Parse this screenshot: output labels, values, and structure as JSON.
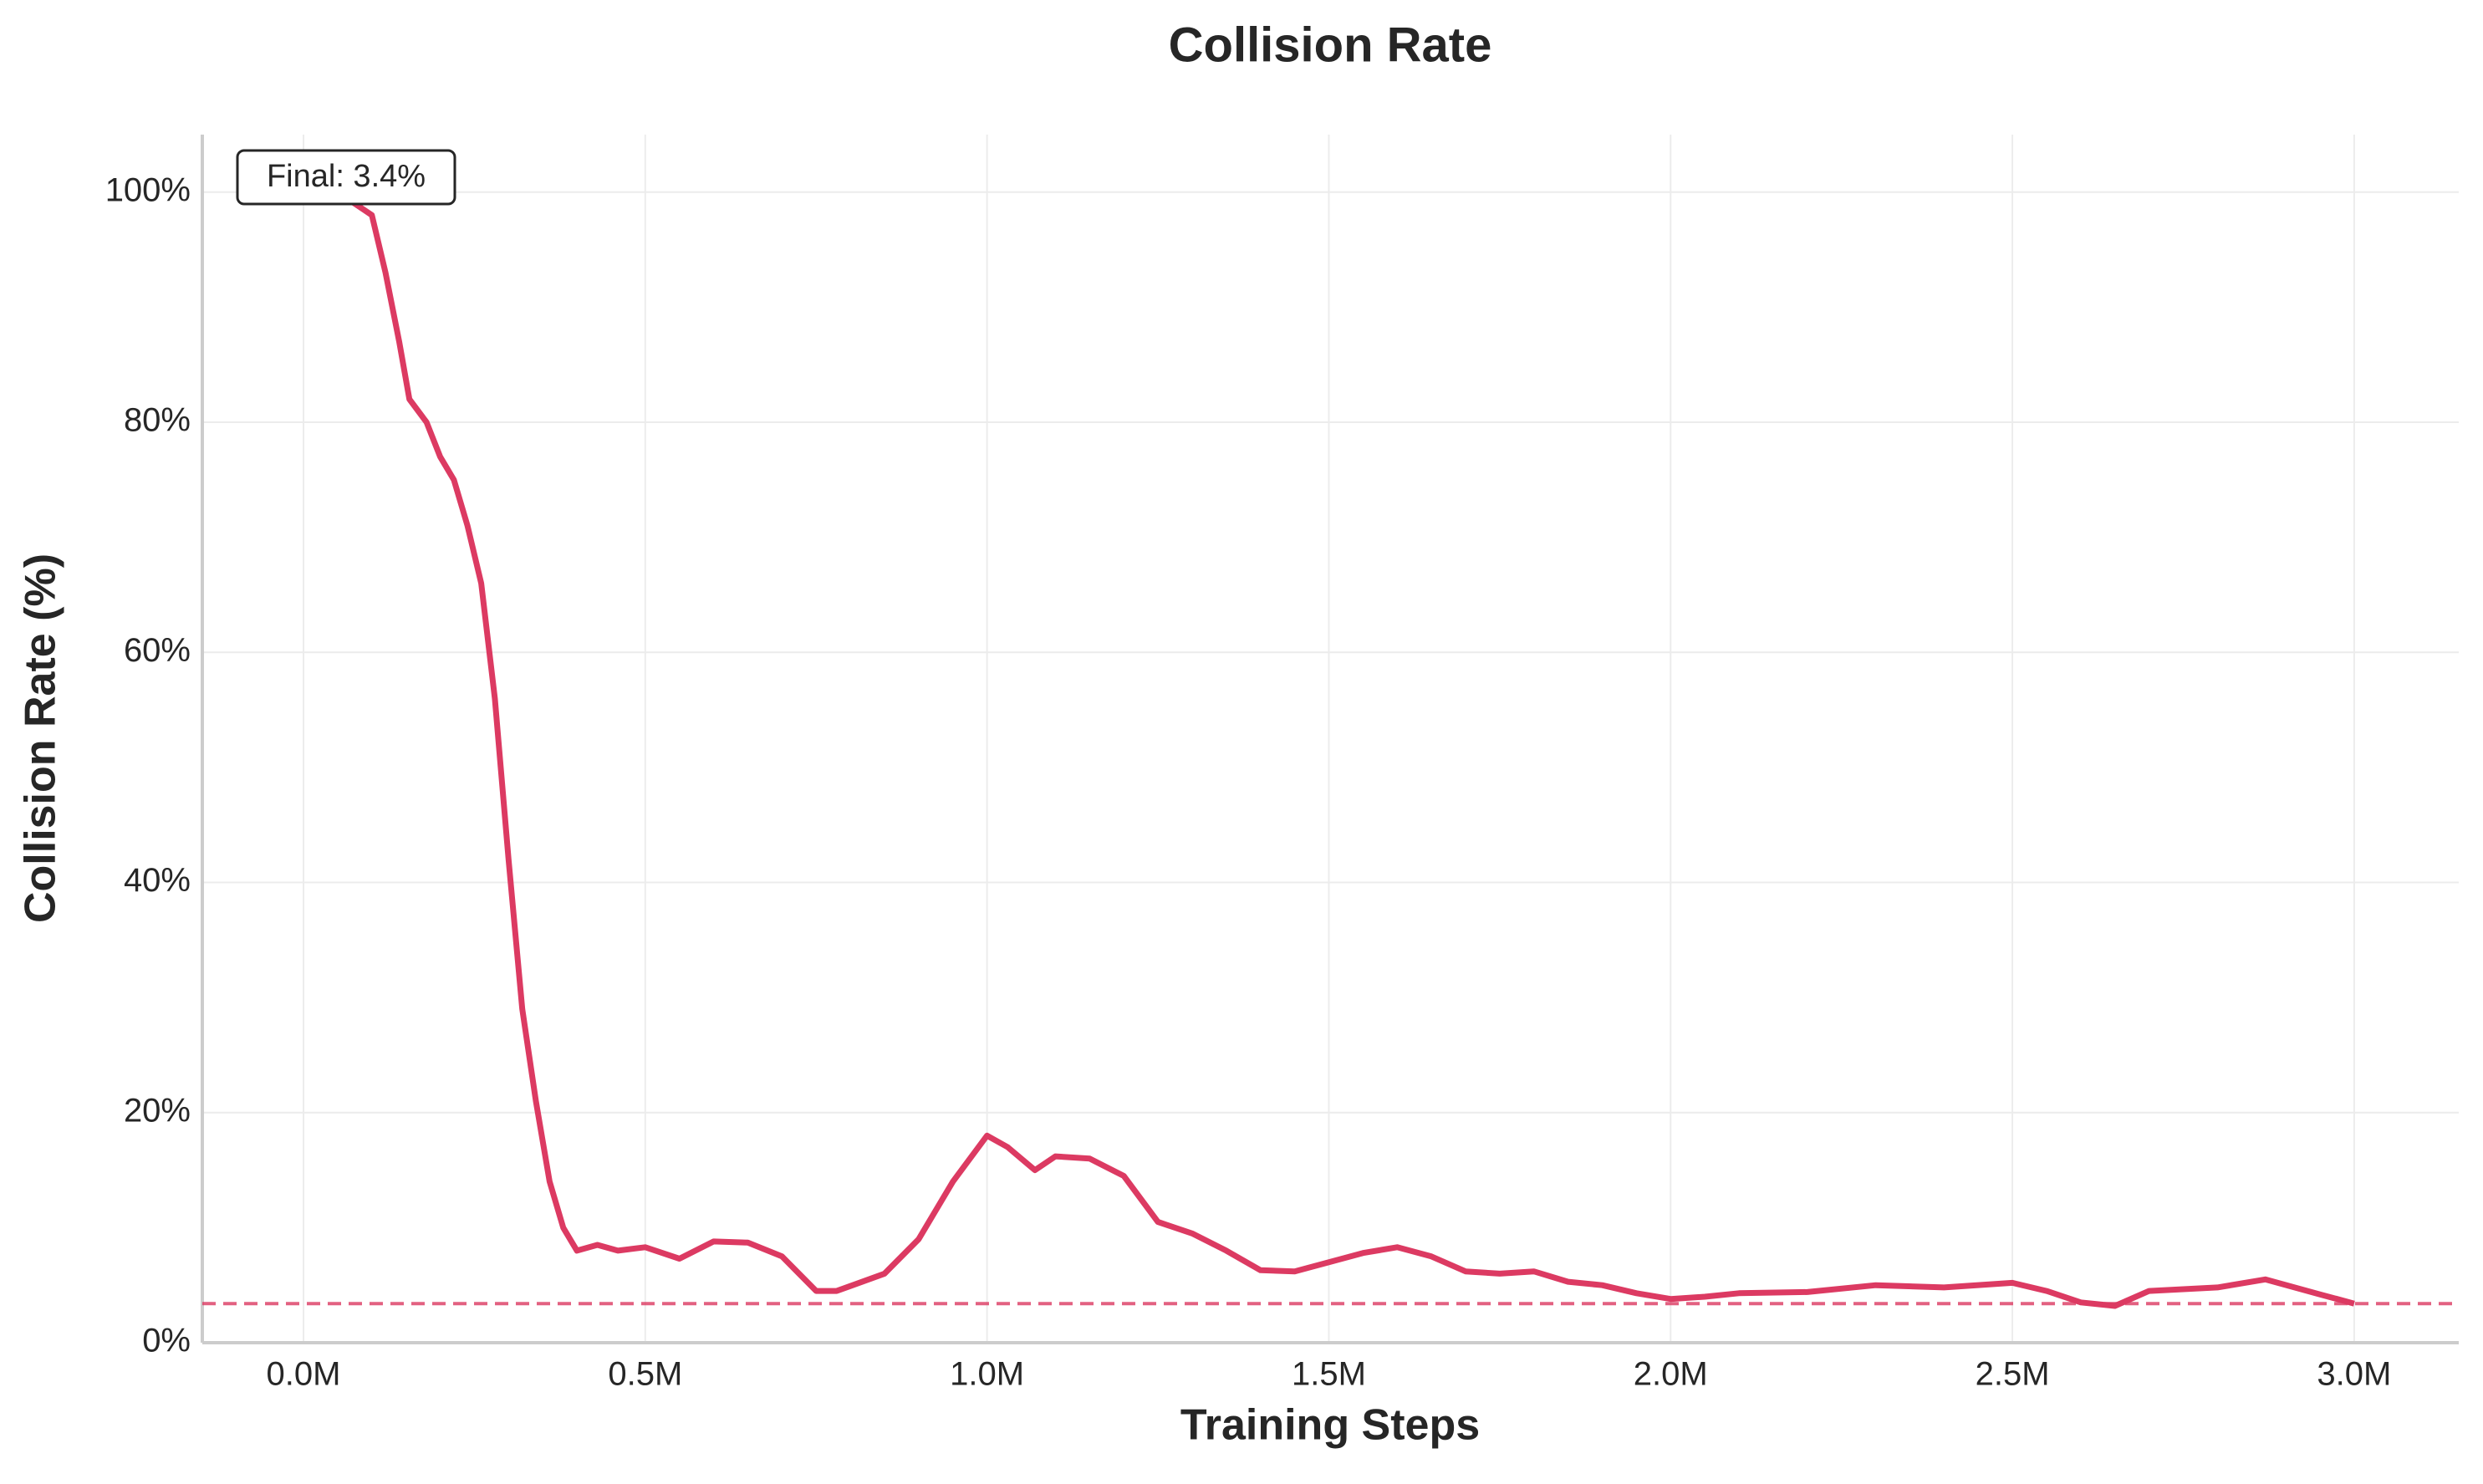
{
  "chart_data": {
    "type": "line",
    "title": "Collision Rate",
    "x_label": "Training Steps",
    "y_label": "Collision Rate (%)",
    "annotation": "Final: 3.4%",
    "reference_line": 3.4,
    "grid": true,
    "xlim": [
      -148000,
      3153000
    ],
    "ylim": [
      0,
      105
    ],
    "xticks": [
      {
        "value": 0,
        "label": "0.0M"
      },
      {
        "value": 500000,
        "label": "0.5M"
      },
      {
        "value": 1000000,
        "label": "1.0M"
      },
      {
        "value": 1500000,
        "label": "1.5M"
      },
      {
        "value": 2000000,
        "label": "2.0M"
      },
      {
        "value": 2500000,
        "label": "2.5M"
      },
      {
        "value": 3000000,
        "label": "3.0M"
      }
    ],
    "yticks": [
      {
        "value": 0,
        "label": "0%"
      },
      {
        "value": 20,
        "label": "20%"
      },
      {
        "value": 40,
        "label": "40%"
      },
      {
        "value": 60,
        "label": "60%"
      },
      {
        "value": 80,
        "label": "80%"
      },
      {
        "value": 100,
        "label": "100%"
      }
    ],
    "series": [
      {
        "name": "Collision Rate",
        "color": "#dc3a62",
        "x": [
          0,
          50000,
          100000,
          120000,
          140000,
          155000,
          180000,
          200000,
          220000,
          240000,
          260000,
          280000,
          300000,
          320000,
          340000,
          360000,
          380000,
          400000,
          430000,
          460000,
          500000,
          550000,
          600000,
          650000,
          700000,
          750000,
          780000,
          850000,
          900000,
          950000,
          1000000,
          1030000,
          1070000,
          1100000,
          1150000,
          1200000,
          1250000,
          1300000,
          1350000,
          1400000,
          1450000,
          1500000,
          1550000,
          1600000,
          1650000,
          1700000,
          1750000,
          1800000,
          1850000,
          1900000,
          1950000,
          2000000,
          2050000,
          2100000,
          2200000,
          2300000,
          2400000,
          2500000,
          2550000,
          2600000,
          2650000,
          2700000,
          2800000,
          2870000,
          2950000,
          3000000
        ],
        "values": [
          100,
          100,
          98,
          93,
          87,
          82,
          80,
          77,
          75,
          71,
          66,
          56,
          42,
          29,
          21,
          14,
          10,
          8,
          8.5,
          8,
          8.3,
          7.3,
          8.8,
          8.7,
          7.5,
          4.5,
          4.5,
          6,
          9,
          14,
          18,
          17,
          15,
          16.2,
          16,
          14.5,
          10.5,
          9.5,
          8,
          6.3,
          6.2,
          7,
          7.8,
          8.3,
          7.5,
          6.2,
          6,
          6.2,
          5.3,
          5,
          4.3,
          3.8,
          4,
          4.3,
          4.4,
          5,
          4.8,
          5.2,
          4.5,
          3.5,
          3.2,
          4.5,
          4.8,
          5.5,
          4.2,
          3.4
        ]
      }
    ]
  }
}
